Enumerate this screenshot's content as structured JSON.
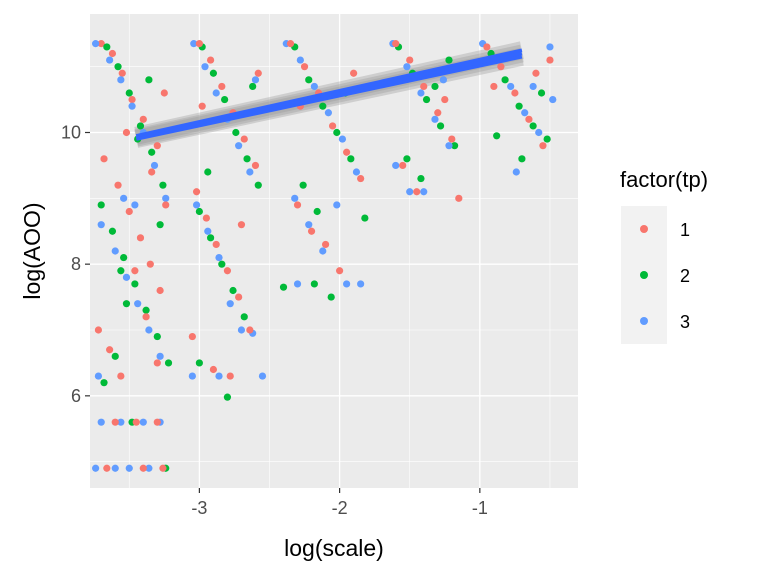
{
  "chart_data": {
    "type": "scatter",
    "title": "",
    "xlabel": "log(scale)",
    "ylabel": "log(AOO)",
    "xlim": [
      -3.78,
      -0.3
    ],
    "ylim": [
      4.6,
      11.8
    ],
    "x_ticks": [
      -3,
      -2,
      -1
    ],
    "x_tick_labels": [
      "-3",
      "-2",
      "-1"
    ],
    "y_ticks": [
      6,
      8,
      10
    ],
    "y_tick_labels": [
      "6",
      "8",
      "10"
    ],
    "grid": true,
    "panel_background": "#ebebeb",
    "legend": {
      "title": "factor(tp)",
      "placement": "right",
      "entries": [
        "1",
        "2",
        "3"
      ]
    },
    "series": [
      {
        "name": "1",
        "color": "#f8766d",
        "points": [
          [
            -3.7,
            11.35
          ],
          [
            -3.62,
            11.2
          ],
          [
            -3.55,
            10.9
          ],
          [
            -3.48,
            10.5
          ],
          [
            -3.4,
            10.2
          ],
          [
            -3.3,
            9.8
          ],
          [
            -3.25,
            10.6
          ],
          [
            -3.68,
            9.6
          ],
          [
            -3.58,
            9.2
          ],
          [
            -3.5,
            8.8
          ],
          [
            -3.42,
            8.4
          ],
          [
            -3.35,
            8.0
          ],
          [
            -3.28,
            7.6
          ],
          [
            -3.72,
            7.0
          ],
          [
            -3.64,
            6.7
          ],
          [
            -3.56,
            6.3
          ],
          [
            -3.46,
            7.9
          ],
          [
            -3.38,
            7.2
          ],
          [
            -3.3,
            6.5
          ],
          [
            -3.24,
            8.9
          ],
          [
            -3.6,
            5.6
          ],
          [
            -3.45,
            5.6
          ],
          [
            -3.3,
            5.6
          ],
          [
            -3.66,
            4.9
          ],
          [
            -3.4,
            4.9
          ],
          [
            -3.26,
            4.9
          ],
          [
            -3.52,
            10.0
          ],
          [
            -3.34,
            9.4
          ],
          [
            -3.0,
            11.35
          ],
          [
            -2.92,
            11.1
          ],
          [
            -2.84,
            10.7
          ],
          [
            -2.76,
            10.3
          ],
          [
            -2.68,
            9.9
          ],
          [
            -2.6,
            9.5
          ],
          [
            -3.02,
            9.1
          ],
          [
            -2.95,
            8.7
          ],
          [
            -2.88,
            8.3
          ],
          [
            -2.8,
            7.9
          ],
          [
            -2.72,
            7.5
          ],
          [
            -2.64,
            7.0
          ],
          [
            -3.05,
            6.9
          ],
          [
            -2.9,
            6.4
          ],
          [
            -2.78,
            6.3
          ],
          [
            -2.7,
            8.6
          ],
          [
            -2.58,
            10.9
          ],
          [
            -2.98,
            10.4
          ],
          [
            -2.35,
            11.35
          ],
          [
            -2.25,
            11.0
          ],
          [
            -2.15,
            10.6
          ],
          [
            -2.05,
            10.1
          ],
          [
            -1.95,
            9.7
          ],
          [
            -1.85,
            9.3
          ],
          [
            -2.3,
            8.9
          ],
          [
            -2.2,
            8.5
          ],
          [
            -2.1,
            8.3
          ],
          [
            -2.0,
            7.9
          ],
          [
            -2.28,
            10.4
          ],
          [
            -1.9,
            10.9
          ],
          [
            -1.6,
            11.35
          ],
          [
            -1.5,
            11.1
          ],
          [
            -1.4,
            10.7
          ],
          [
            -1.3,
            10.3
          ],
          [
            -1.2,
            9.9
          ],
          [
            -1.55,
            9.5
          ],
          [
            -1.45,
            9.1
          ],
          [
            -1.35,
            10.9
          ],
          [
            -1.15,
            9.0
          ],
          [
            -1.25,
            10.5
          ],
          [
            -0.95,
            11.3
          ],
          [
            -0.85,
            11.0
          ],
          [
            -0.75,
            10.6
          ],
          [
            -0.65,
            10.2
          ],
          [
            -0.55,
            9.8
          ],
          [
            -0.9,
            10.7
          ],
          [
            -0.6,
            10.9
          ],
          [
            -0.5,
            11.1
          ]
        ]
      },
      {
        "name": "2",
        "color": "#00ba38",
        "points": [
          [
            -3.66,
            11.3
          ],
          [
            -3.58,
            11.0
          ],
          [
            -3.5,
            10.6
          ],
          [
            -3.42,
            10.1
          ],
          [
            -3.34,
            9.7
          ],
          [
            -3.26,
            9.2
          ],
          [
            -3.7,
            8.9
          ],
          [
            -3.62,
            8.5
          ],
          [
            -3.54,
            8.1
          ],
          [
            -3.46,
            7.7
          ],
          [
            -3.38,
            7.3
          ],
          [
            -3.3,
            6.9
          ],
          [
            -3.22,
            6.5
          ],
          [
            -3.68,
            6.2
          ],
          [
            -3.6,
            6.6
          ],
          [
            -3.52,
            7.4
          ],
          [
            -3.44,
            9.9
          ],
          [
            -3.36,
            10.8
          ],
          [
            -3.28,
            8.6
          ],
          [
            -3.24,
            4.9
          ],
          [
            -3.48,
            5.6
          ],
          [
            -3.56,
            7.9
          ],
          [
            -2.98,
            11.3
          ],
          [
            -2.9,
            10.9
          ],
          [
            -2.82,
            10.5
          ],
          [
            -2.74,
            10.0
          ],
          [
            -2.66,
            9.6
          ],
          [
            -2.58,
            9.2
          ],
          [
            -3.0,
            8.8
          ],
          [
            -2.92,
            8.4
          ],
          [
            -2.84,
            8.0
          ],
          [
            -2.76,
            7.6
          ],
          [
            -2.68,
            7.2
          ],
          [
            -3.0,
            6.5
          ],
          [
            -2.8,
            5.98
          ],
          [
            -2.62,
            10.7
          ],
          [
            -2.94,
            9.4
          ],
          [
            -2.32,
            11.3
          ],
          [
            -2.22,
            10.8
          ],
          [
            -2.12,
            10.4
          ],
          [
            -2.02,
            10.0
          ],
          [
            -1.92,
            9.6
          ],
          [
            -1.82,
            8.7
          ],
          [
            -2.26,
            9.2
          ],
          [
            -2.16,
            8.8
          ],
          [
            -2.06,
            7.5
          ],
          [
            -2.4,
            7.65
          ],
          [
            -2.18,
            7.7
          ],
          [
            -1.96,
            10.6
          ],
          [
            -1.58,
            11.3
          ],
          [
            -1.48,
            10.9
          ],
          [
            -1.38,
            10.5
          ],
          [
            -1.28,
            10.1
          ],
          [
            -1.18,
            9.8
          ],
          [
            -1.52,
            9.6
          ],
          [
            -1.42,
            9.3
          ],
          [
            -1.32,
            10.7
          ],
          [
            -1.22,
            11.1
          ],
          [
            -0.92,
            11.2
          ],
          [
            -0.82,
            10.8
          ],
          [
            -0.72,
            10.4
          ],
          [
            -0.62,
            10.1
          ],
          [
            -0.52,
            9.9
          ],
          [
            -0.88,
            9.95
          ],
          [
            -0.7,
            9.6
          ],
          [
            -0.56,
            10.6
          ]
        ]
      },
      {
        "name": "3",
        "color": "#619cff",
        "points": [
          [
            -3.74,
            11.35
          ],
          [
            -3.64,
            11.1
          ],
          [
            -3.56,
            10.8
          ],
          [
            -3.48,
            10.4
          ],
          [
            -3.4,
            10.0
          ],
          [
            -3.32,
            9.5
          ],
          [
            -3.24,
            9.0
          ],
          [
            -3.7,
            8.6
          ],
          [
            -3.6,
            8.2
          ],
          [
            -3.52,
            7.8
          ],
          [
            -3.44,
            7.4
          ],
          [
            -3.36,
            7.0
          ],
          [
            -3.28,
            6.6
          ],
          [
            -3.72,
            6.3
          ],
          [
            -3.7,
            5.6
          ],
          [
            -3.56,
            5.6
          ],
          [
            -3.4,
            5.6
          ],
          [
            -3.28,
            5.6
          ],
          [
            -3.74,
            4.9
          ],
          [
            -3.6,
            4.9
          ],
          [
            -3.5,
            4.9
          ],
          [
            -3.36,
            4.9
          ],
          [
            -3.54,
            9.0
          ],
          [
            -3.46,
            8.9
          ],
          [
            -3.04,
            11.35
          ],
          [
            -2.96,
            11.0
          ],
          [
            -2.88,
            10.6
          ],
          [
            -2.8,
            10.2
          ],
          [
            -2.72,
            9.8
          ],
          [
            -2.64,
            9.4
          ],
          [
            -3.02,
            8.9
          ],
          [
            -2.94,
            8.5
          ],
          [
            -2.86,
            8.1
          ],
          [
            -2.78,
            7.4
          ],
          [
            -2.7,
            7.0
          ],
          [
            -2.62,
            6.95
          ],
          [
            -3.05,
            6.3
          ],
          [
            -2.86,
            6.3
          ],
          [
            -2.55,
            6.3
          ],
          [
            -2.6,
            10.8
          ],
          [
            -2.38,
            11.35
          ],
          [
            -2.28,
            11.1
          ],
          [
            -2.18,
            10.7
          ],
          [
            -2.08,
            10.3
          ],
          [
            -1.98,
            9.9
          ],
          [
            -1.88,
            9.4
          ],
          [
            -2.32,
            9.0
          ],
          [
            -2.22,
            8.6
          ],
          [
            -2.12,
            8.2
          ],
          [
            -2.3,
            7.7
          ],
          [
            -1.95,
            7.7
          ],
          [
            -1.85,
            7.7
          ],
          [
            -2.02,
            8.9
          ],
          [
            -1.62,
            11.35
          ],
          [
            -1.52,
            11.0
          ],
          [
            -1.42,
            10.6
          ],
          [
            -1.32,
            10.2
          ],
          [
            -1.22,
            9.8
          ],
          [
            -1.6,
            9.5
          ],
          [
            -1.5,
            9.1
          ],
          [
            -1.4,
            9.1
          ],
          [
            -1.26,
            10.8
          ],
          [
            -0.98,
            11.35
          ],
          [
            -0.88,
            11.1
          ],
          [
            -0.78,
            10.7
          ],
          [
            -0.68,
            10.3
          ],
          [
            -0.58,
            10.0
          ],
          [
            -0.48,
            10.5
          ],
          [
            -0.74,
            9.4
          ],
          [
            -0.62,
            10.7
          ],
          [
            -0.5,
            11.3
          ]
        ]
      }
    ],
    "trend_lines": [
      {
        "series": "1",
        "color": "#3366ff",
        "x": [
          -3.45,
          -0.7
        ],
        "y": [
          9.95,
          11.25
        ]
      },
      {
        "series": "2",
        "color": "#3366ff",
        "x": [
          -3.45,
          -0.7
        ],
        "y": [
          9.92,
          11.2
        ]
      },
      {
        "series": "3",
        "color": "#3366ff",
        "x": [
          -3.45,
          -0.7
        ],
        "y": [
          9.9,
          11.15
        ]
      }
    ]
  }
}
